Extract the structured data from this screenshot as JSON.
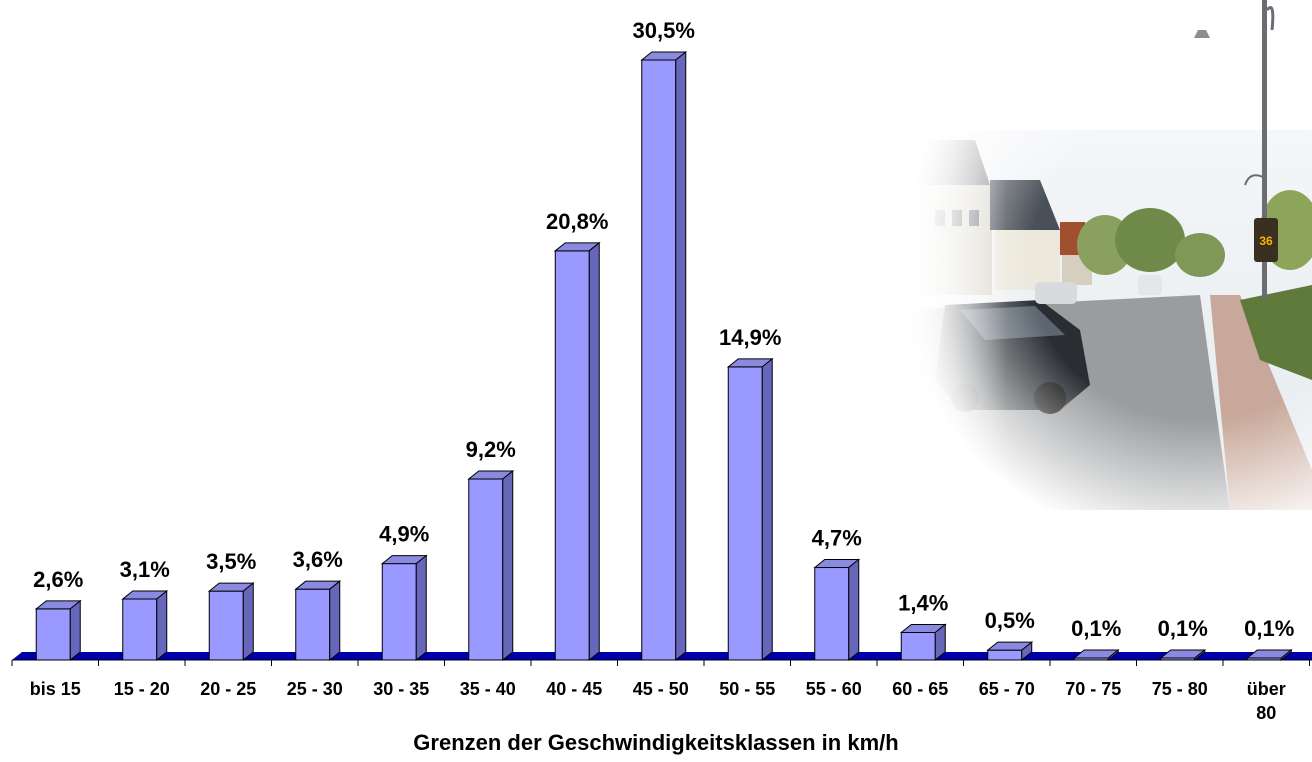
{
  "chart_data": {
    "type": "bar",
    "categories": [
      "bis 15",
      "15 - 20",
      "20 - 25",
      "25 - 30",
      "30 - 35",
      "35 - 40",
      "40 - 45",
      "45 - 50",
      "50 - 55",
      "55 - 60",
      "60 - 65",
      "65 - 70",
      "70 - 75",
      "75 - 80",
      "über 80"
    ],
    "values": [
      2.6,
      3.1,
      3.5,
      3.6,
      4.9,
      9.2,
      20.8,
      30.5,
      14.9,
      4.7,
      1.4,
      0.5,
      0.1,
      0.1,
      0.1
    ],
    "value_labels": [
      "2,6%",
      "3,1%",
      "3,5%",
      "3,6%",
      "4,9%",
      "9,2%",
      "20,8%",
      "30,5%",
      "14,9%",
      "4,7%",
      "1,4%",
      "0,5%",
      "0,1%",
      "0,1%",
      "0,1%"
    ],
    "xlabel": "Grenzen der Geschwindigkeitsklassen in km/h",
    "ylabel": "",
    "ylim": [
      0,
      30.5
    ],
    "style": "3d-bar",
    "colors": {
      "bar_front": "#9999ff",
      "bar_top": "#8a8ae0",
      "bar_side": "#6666bb",
      "floor": "#0000aa"
    },
    "grid": false,
    "legend": "none"
  },
  "photo": {
    "description_icon": "street-speed-display-photo"
  }
}
